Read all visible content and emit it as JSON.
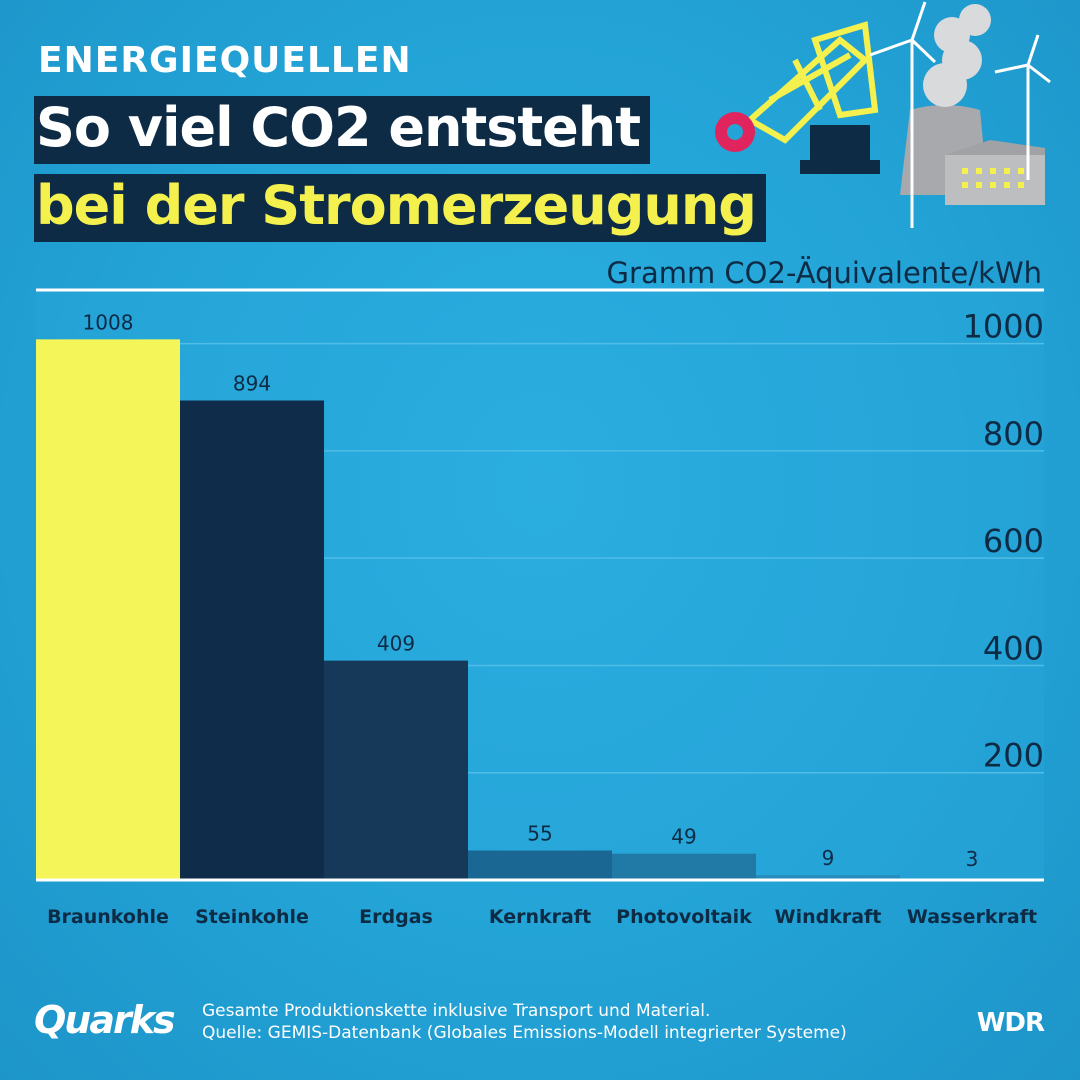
{
  "header": {
    "kicker": "ENERGIEQUELLEN",
    "title_line1": "So viel CO2 entsteht",
    "title_line2": "bei der Stromerzeugung"
  },
  "chart_data": {
    "type": "bar",
    "title": "So viel CO2 entsteht bei der Stromerzeugung",
    "ylabel": "Gramm CO2-Äquivalente/kWh",
    "categories": [
      "Braunkohle",
      "Steinkohle",
      "Erdgas",
      "Kernkraft",
      "Photovoltaik",
      "Windkraft",
      "Wasserkraft"
    ],
    "values": [
      1008,
      894,
      409,
      55,
      49,
      9,
      3
    ],
    "data_labels": [
      "1008",
      "894",
      "409",
      "55",
      "49",
      "9",
      "3"
    ],
    "ylim": [
      0,
      1100
    ],
    "yticks": [
      200,
      400,
      600,
      800,
      1000
    ],
    "grid": true,
    "y_axis_side": "right",
    "bar_colors": [
      "#f4f559",
      "#0f2d4a",
      "#16395a",
      "#1b6793",
      "#217aa6",
      "#268cbb",
      "#29a0d2"
    ]
  },
  "footer": {
    "logo": "Quarks",
    "note_line1": "Gesamte Produktionskette inklusive Transport und Material.",
    "note_line2": "Quelle: GEMIS-Datenbank (Globales Emissions-Modell integrierter Systeme)",
    "broadcaster": "WDR"
  },
  "colors": {
    "background": "#23a3d6",
    "dark": "#0d2b45",
    "yellow": "#f4f04e",
    "accent_pink": "#e0245e"
  }
}
